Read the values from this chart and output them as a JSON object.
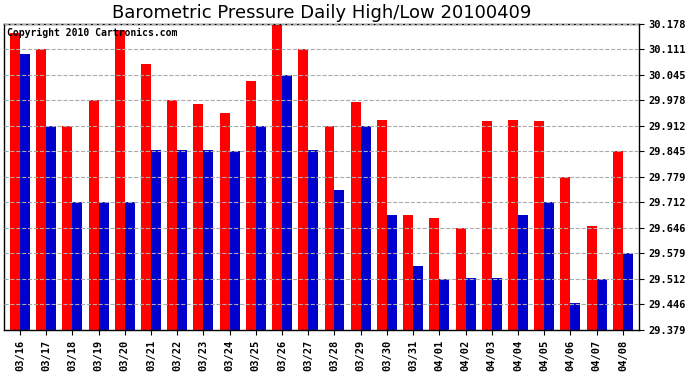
{
  "title": "Barometric Pressure Daily High/Low 20100409",
  "copyright": "Copyright 2010 Cartronics.com",
  "dates": [
    "03/16",
    "03/17",
    "03/18",
    "03/19",
    "03/20",
    "03/21",
    "03/22",
    "03/23",
    "03/24",
    "03/25",
    "03/26",
    "03/27",
    "03/28",
    "03/29",
    "03/30",
    "03/31",
    "04/01",
    "04/02",
    "04/03",
    "04/04",
    "04/05",
    "04/06",
    "04/07",
    "04/08"
  ],
  "highs": [
    30.155,
    30.111,
    29.912,
    29.978,
    30.162,
    30.072,
    29.978,
    29.968,
    29.946,
    30.028,
    30.178,
    30.111,
    29.912,
    29.975,
    29.928,
    29.678,
    29.672,
    29.646,
    29.924,
    29.928,
    29.925,
    29.779,
    29.649,
    29.845
  ],
  "lows": [
    30.098,
    29.912,
    29.712,
    29.712,
    29.712,
    29.848,
    29.848,
    29.848,
    29.845,
    29.912,
    30.045,
    29.848,
    29.745,
    29.912,
    29.678,
    29.545,
    29.512,
    29.515,
    29.515,
    29.678,
    29.712,
    29.448,
    29.512,
    29.579
  ],
  "ymin": 29.379,
  "ymax": 30.178,
  "yticks": [
    29.379,
    29.446,
    29.512,
    29.579,
    29.646,
    29.712,
    29.779,
    29.845,
    29.912,
    29.978,
    30.045,
    30.111,
    30.178
  ],
  "high_color": "#ff0000",
  "low_color": "#0000cd",
  "bar_width": 0.38,
  "background_color": "#ffffff",
  "grid_color": "#aaaaaa",
  "title_fontsize": 13,
  "tick_fontsize": 7.5,
  "copyright_fontsize": 7
}
